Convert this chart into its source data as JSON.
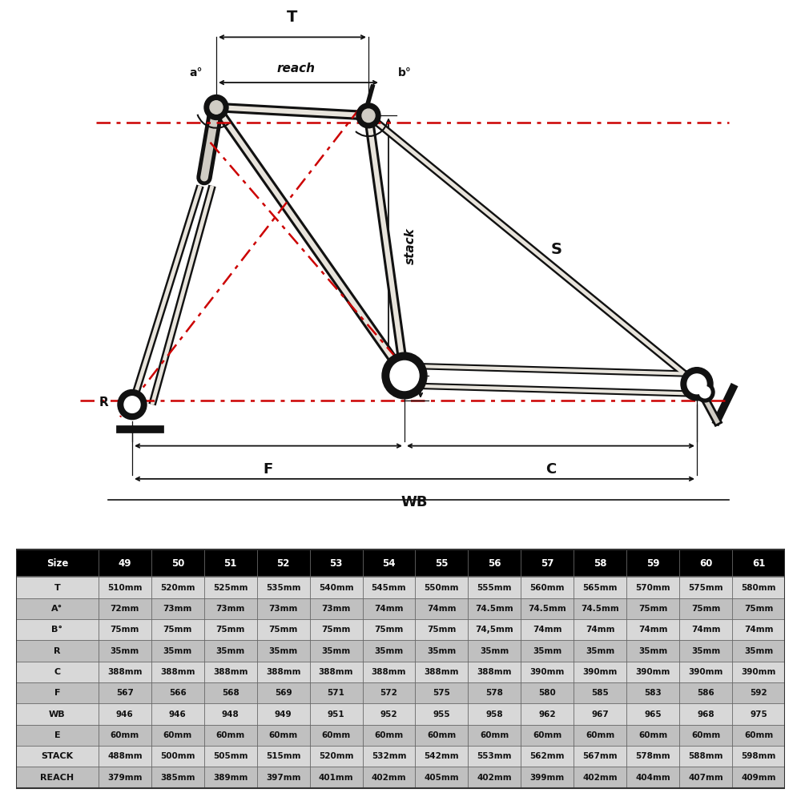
{
  "table_header_bg": "#000000",
  "table_header_fg": "#ffffff",
  "table_row_bg1": "#d8d8d8",
  "table_row_bg2": "#c0c0c0",
  "table_border_color": "#555555",
  "sizes": [
    "49",
    "50",
    "51",
    "52",
    "53",
    "54",
    "55",
    "56",
    "57",
    "58",
    "59",
    "60",
    "61"
  ],
  "rows": {
    "T": [
      "510mm",
      "520mm",
      "525mm",
      "535mm",
      "540mm",
      "545mm",
      "550mm",
      "555mm",
      "560mm",
      "565mm",
      "570mm",
      "575mm",
      "580mm"
    ],
    "A°": [
      "72mm",
      "73mm",
      "73mm",
      "73mm",
      "73mm",
      "74mm",
      "74mm",
      "74.5mm",
      "74.5mm",
      "74.5mm",
      "75mm",
      "75mm",
      "75mm"
    ],
    "B°": [
      "75mm",
      "75mm",
      "75mm",
      "75mm",
      "75mm",
      "75mm",
      "75mm",
      "74,5mm",
      "74mm",
      "74mm",
      "74mm",
      "74mm",
      "74mm"
    ],
    "R": [
      "35mm",
      "35mm",
      "35mm",
      "35mm",
      "35mm",
      "35mm",
      "35mm",
      "35mm",
      "35mm",
      "35mm",
      "35mm",
      "35mm",
      "35mm"
    ],
    "C": [
      "388mm",
      "388mm",
      "388mm",
      "388mm",
      "388mm",
      "388mm",
      "388mm",
      "388mm",
      "390mm",
      "390mm",
      "390mm",
      "390mm",
      "390mm"
    ],
    "F": [
      "567",
      "566",
      "568",
      "569",
      "571",
      "572",
      "575",
      "578",
      "580",
      "585",
      "583",
      "586",
      "592"
    ],
    "WB": [
      "946",
      "946",
      "948",
      "949",
      "951",
      "952",
      "955",
      "958",
      "962",
      "967",
      "965",
      "968",
      "975"
    ],
    "E": [
      "60mm",
      "60mm",
      "60mm",
      "60mm",
      "60mm",
      "60mm",
      "60mm",
      "60mm",
      "60mm",
      "60mm",
      "60mm",
      "60mm",
      "60mm"
    ],
    "STACK": [
      "488mm",
      "500mm",
      "505mm",
      "515mm",
      "520mm",
      "532mm",
      "542mm",
      "553mm",
      "562mm",
      "567mm",
      "578mm",
      "588mm",
      "598mm"
    ],
    "REACH": [
      "379mm",
      "385mm",
      "389mm",
      "397mm",
      "401mm",
      "402mm",
      "405mm",
      "402mm",
      "399mm",
      "402mm",
      "404mm",
      "407mm",
      "409mm"
    ]
  },
  "row_order": [
    "T",
    "A°",
    "B°",
    "R",
    "C",
    "F",
    "WB",
    "E",
    "STACK",
    "REACH"
  ],
  "lc": "#111111",
  "dc": "#cc0000",
  "frame_fill": "#e8e4dc",
  "diagram_bg": "#ffffff"
}
